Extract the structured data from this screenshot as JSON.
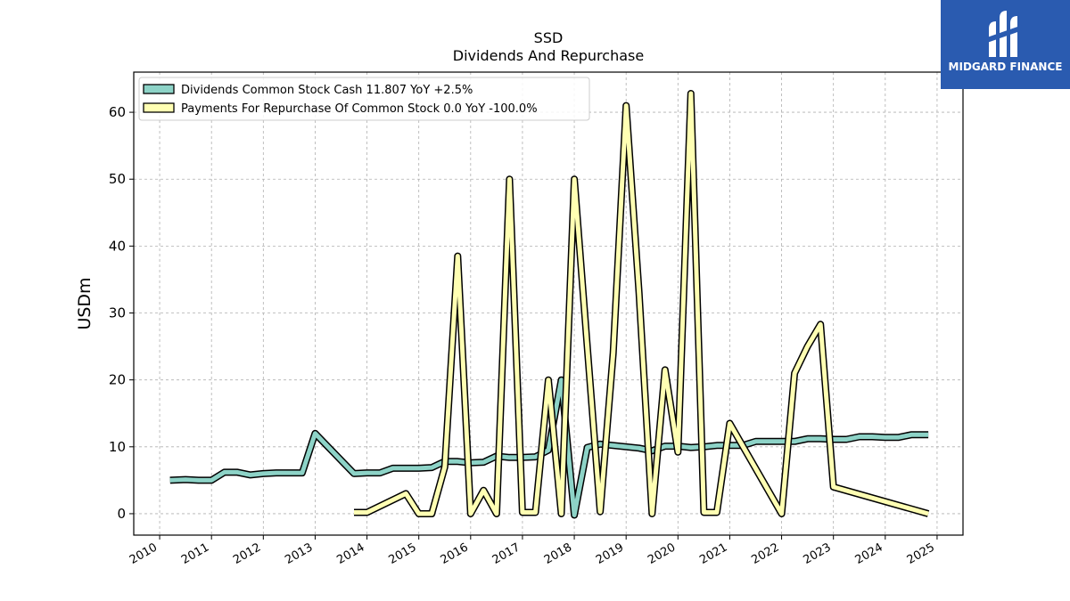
{
  "brand": {
    "name": "MIDGARD FINANCE",
    "color": "#2a5bb0"
  },
  "chart_data": {
    "type": "line",
    "title": "SSD",
    "subtitle": "Dividends And Repurchase",
    "xlabel": "",
    "ylabel": "USDm",
    "xlim": [
      2009.5,
      2025.5
    ],
    "ylim": [
      -3.2,
      66
    ],
    "x_ticks": [
      "2010",
      "2011",
      "2012",
      "2013",
      "2014",
      "2015",
      "2016",
      "2017",
      "2018",
      "2019",
      "2020",
      "2021",
      "2022",
      "2023",
      "2024",
      "2025"
    ],
    "y_ticks": [
      0,
      10,
      20,
      30,
      40,
      50,
      60
    ],
    "grid": true,
    "legend_position": "upper-left",
    "series": [
      {
        "name": "Dividends Common Stock Cash  11.807 YoY +2.5%",
        "color": "#8dd3c7",
        "x": [
          2010.2,
          2010.5,
          2010.75,
          2011.0,
          2011.25,
          2011.5,
          2011.75,
          2012.0,
          2012.25,
          2012.5,
          2012.75,
          2013.0,
          2013.75,
          2014.0,
          2014.25,
          2014.5,
          2014.75,
          2015.0,
          2015.25,
          2015.5,
          2015.75,
          2016.0,
          2016.25,
          2016.5,
          2016.75,
          2017.0,
          2017.25,
          2017.5,
          2017.75,
          2018.0,
          2018.25,
          2018.5,
          2018.75,
          2019.0,
          2019.25,
          2019.5,
          2019.75,
          2020.0,
          2020.25,
          2020.5,
          2020.75,
          2021.0,
          2021.25,
          2021.5,
          2021.75,
          2022.0,
          2022.25,
          2022.5,
          2022.75,
          2023.0,
          2023.25,
          2023.5,
          2023.75,
          2024.0,
          2024.25,
          2024.5,
          2024.83
        ],
        "values": [
          5.0,
          5.1,
          5.0,
          5.0,
          6.2,
          6.2,
          5.8,
          6.0,
          6.1,
          6.1,
          6.1,
          12.0,
          6.0,
          6.1,
          6.1,
          6.8,
          6.8,
          6.8,
          6.9,
          7.8,
          7.8,
          7.6,
          7.7,
          8.6,
          8.4,
          8.4,
          8.5,
          9.5,
          20.0,
          -0.2,
          9.9,
          10.4,
          10.2,
          10.0,
          9.8,
          9.4,
          10.1,
          10.1,
          9.9,
          10.0,
          10.2,
          10.2,
          10.2,
          10.8,
          10.8,
          10.8,
          10.8,
          11.2,
          11.2,
          11.1,
          11.1,
          11.5,
          11.5,
          11.4,
          11.4,
          11.8,
          11.8
        ]
      },
      {
        "name": "Payments For Repurchase Of Common Stock  0.0 YoY -100.0%",
        "color": "#ffffb3",
        "x": [
          2013.75,
          2014.0,
          2014.75,
          2015.0,
          2015.25,
          2015.5,
          2015.75,
          2016.0,
          2016.25,
          2016.5,
          2016.75,
          2017.0,
          2017.25,
          2017.5,
          2017.75,
          2018.0,
          2018.25,
          2018.5,
          2018.75,
          2019.0,
          2019.25,
          2019.5,
          2019.75,
          2020.0,
          2020.25,
          2020.5,
          2020.75,
          2021.0,
          2022.0,
          2022.25,
          2022.5,
          2022.75,
          2023.0,
          2024.83
        ],
        "values": [
          0.2,
          0.2,
          3.0,
          0.0,
          0.0,
          7.0,
          38.5,
          0.0,
          3.5,
          0.0,
          50.0,
          0.2,
          0.2,
          20.0,
          0.0,
          50.0,
          25.0,
          0.3,
          24.0,
          61.0,
          33.0,
          0.0,
          21.5,
          9.2,
          62.8,
          0.2,
          0.2,
          13.5,
          0.0,
          21.0,
          25.0,
          28.3,
          4.0,
          0.0
        ]
      }
    ]
  }
}
